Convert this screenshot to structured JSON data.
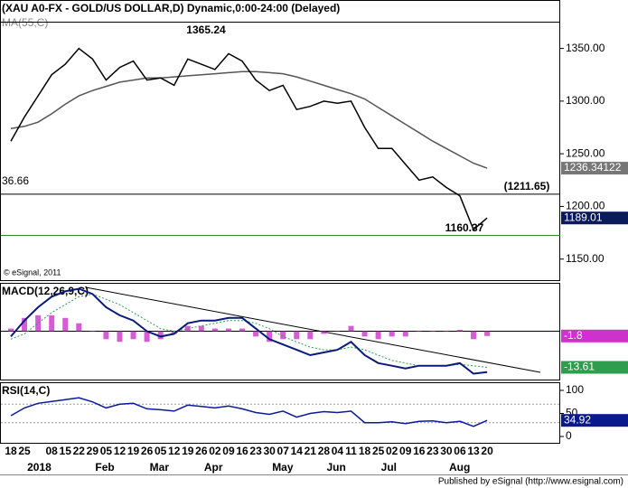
{
  "chart_data": [
    {
      "type": "line",
      "title": "(XAU A0-FX - GOLD/US DOLLAR,D) Dynamic,0:00-24:00 (Delayed)",
      "subtitle": "MA(55,C)",
      "credit": "© eSignal, 2011",
      "series": [
        {
          "name": "Price",
          "color": "#000000",
          "values": [
            1262,
            1285,
            1305,
            1325,
            1335,
            1350,
            1340,
            1320,
            1332,
            1338,
            1320,
            1322,
            1315,
            1340,
            1335,
            1330,
            1345,
            1338,
            1320,
            1310,
            1315,
            1292,
            1295,
            1300,
            1298,
            1300,
            1275,
            1255,
            1255,
            1240,
            1225,
            1228,
            1218,
            1210,
            1178,
            1189.01
          ]
        },
        {
          "name": "MA(55,C)",
          "color": "#555555",
          "values": [
            1274,
            1276,
            1280,
            1288,
            1297,
            1305,
            1310,
            1314,
            1318,
            1320,
            1322,
            1322,
            1323,
            1324,
            1325,
            1326,
            1327,
            1328,
            1328,
            1327,
            1326,
            1323,
            1319,
            1315,
            1311,
            1307,
            1302,
            1294,
            1286,
            1278,
            1270,
            1262,
            1255,
            1248,
            1241,
            1236.34122
          ]
        }
      ],
      "ylim": [
        1130,
        1396
      ],
      "yticks": [
        {
          "value": 1150,
          "label": "1150.00"
        },
        {
          "value": 1200,
          "label": "1200.00"
        },
        {
          "value": 1250,
          "label": "1250.00"
        },
        {
          "value": 1300,
          "label": "1300.00"
        },
        {
          "value": 1350,
          "label": "1350.00"
        }
      ],
      "hlines": [
        {
          "value": 1375,
          "color": "#000000"
        },
        {
          "value": 1211.65,
          "color": "#000000"
        },
        {
          "value": 1172.5,
          "color": "#2e8b2e"
        }
      ],
      "high": 1365.24,
      "low": 1160.37,
      "resistance": {
        "value": 1211.65,
        "label": "(1211.65)"
      },
      "clipped": "36.66"
    },
    {
      "type": "macd",
      "title": "MACD(12,26,9,C)",
      "series": [
        {
          "name": "MACD",
          "color": "#0a1a7a",
          "values": [
            -2,
            4,
            9,
            13,
            15,
            16,
            14,
            9,
            6,
            4,
            0,
            -2,
            -1,
            3,
            4,
            4,
            5,
            5,
            1,
            -3,
            -5,
            -7,
            -9,
            -8,
            -7,
            -4,
            -9,
            -12,
            -13,
            -14,
            -13,
            -13,
            -13,
            -12,
            -16,
            -15.41
          ]
        },
        {
          "name": "Signal",
          "color": "#2e9e4e",
          "values": [
            -3,
            -1,
            3,
            7,
            10,
            13,
            14,
            12,
            10,
            7,
            4,
            1,
            0,
            1,
            2,
            3,
            4,
            4,
            3,
            1,
            -2,
            -4,
            -6,
            -7,
            -7,
            -6,
            -7,
            -9,
            -11,
            -12,
            -13,
            -13,
            -13,
            -12.5,
            -13,
            -13.61
          ]
        },
        {
          "name": "Histogram",
          "color": "#cc33cc",
          "values": [
            1,
            5,
            6,
            6,
            5,
            3,
            0,
            -3,
            -4,
            -3,
            -4,
            -3,
            -1,
            2,
            2,
            1,
            1,
            1,
            -2,
            -4,
            -3,
            -3,
            -3,
            -1,
            0,
            2,
            -2,
            -3,
            -2,
            -2,
            0,
            0,
            0,
            0.5,
            -3,
            -1.8
          ]
        }
      ],
      "ylim": [
        -18.2,
        18.2
      ]
    },
    {
      "type": "line",
      "title": "RSI(14,C)",
      "series": [
        {
          "name": "RSI",
          "color": "#0a1a9a",
          "values": [
            45,
            62,
            72,
            76,
            80,
            84,
            75,
            62,
            70,
            72,
            60,
            58,
            55,
            68,
            65,
            62,
            66,
            60,
            52,
            48,
            55,
            42,
            50,
            54,
            52,
            55,
            30,
            30,
            32,
            28,
            33,
            34,
            30,
            33,
            22,
            34.92
          ]
        }
      ],
      "ylim": [
        -13.7,
        117.6
      ],
      "yticks": [
        0,
        50,
        100
      ],
      "levels": [
        30,
        70
      ],
      "categories": [
        "18",
        "25",
        null,
        "08",
        "15",
        "22",
        "29",
        "05",
        "12",
        "19",
        "26",
        "05",
        "12",
        "19",
        "26",
        "02",
        "09",
        "16",
        "23",
        "30",
        "07",
        "14",
        "21",
        "28",
        "04",
        "11",
        "18",
        "25",
        "02",
        "09",
        "16",
        "23",
        "30",
        "06",
        "13",
        "20"
      ],
      "months": [
        null,
        null,
        "2018",
        null,
        null,
        null,
        null,
        "Feb",
        null,
        null,
        null,
        "Mar",
        null,
        null,
        null,
        "Apr",
        null,
        null,
        null,
        null,
        "May",
        null,
        null,
        null,
        "Jun",
        null,
        null,
        null,
        "Jul",
        null,
        null,
        null,
        null,
        "Aug",
        null,
        null
      ]
    }
  ],
  "footer": "Published by eSignal (http://www.esignal.com)"
}
